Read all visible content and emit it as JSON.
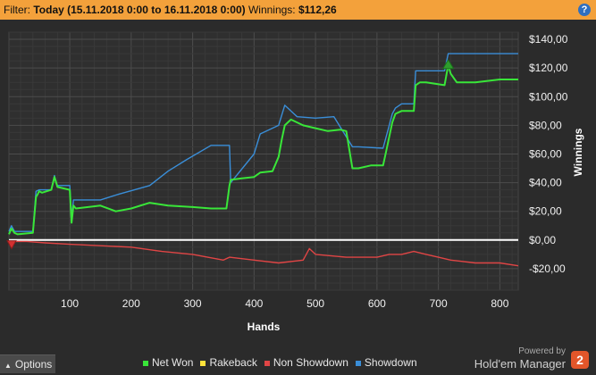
{
  "filter": {
    "label": "Filter:",
    "value": "Today (15.11.2018 0:00 to 16.11.2018 0:00)",
    "winnings_label": "Winnings:",
    "winnings_value": "$112,26"
  },
  "help_glyph": "?",
  "options_label": "Options",
  "brand": {
    "powered": "Powered by",
    "name": "Hold'em Manager",
    "logo_text": "2"
  },
  "colors": {
    "net_won": "#39e639",
    "rakeback": "#ffe23a",
    "non_showdown": "#e04545",
    "showdown": "#3a8ed8",
    "zero_line": "#ffffff",
    "background": "#2b2b2b",
    "plot_background": "#2f2f2f"
  },
  "chart_data": {
    "type": "line",
    "xlabel": "Hands",
    "ylabel": "Winnings",
    "xlim": [
      1,
      830
    ],
    "ylim": [
      -35,
      145
    ],
    "x_ticks": [
      100,
      200,
      300,
      400,
      500,
      600,
      700,
      800
    ],
    "y_ticks": [
      -20,
      0,
      20,
      40,
      60,
      80,
      100,
      120,
      140
    ],
    "y_tick_labels": [
      "-$20,00",
      "$0,00",
      "$20,00",
      "$40,00",
      "$60,00",
      "$80,00",
      "$100,00",
      "$120,00",
      "$140,00"
    ],
    "grid": true,
    "legend_position": "bottom",
    "series": [
      {
        "name": "Net Won",
        "color": "#39e639",
        "x": [
          1,
          5,
          10,
          15,
          40,
          45,
          48,
          50,
          55,
          70,
          75,
          78,
          80,
          100,
          103,
          106,
          110,
          150,
          175,
          200,
          230,
          260,
          300,
          330,
          355,
          360,
          362,
          380,
          400,
          410,
          430,
          440,
          445,
          450,
          460,
          480,
          500,
          520,
          540,
          550,
          560,
          570,
          590,
          610,
          615,
          625,
          630,
          640,
          660,
          663,
          670,
          680,
          710,
          716,
          720,
          730,
          760,
          800,
          830
        ],
        "values": [
          4,
          8,
          5,
          4,
          5,
          30,
          32,
          34,
          33,
          35,
          44,
          40,
          37,
          35,
          12,
          24,
          22,
          24,
          20,
          22,
          26,
          24,
          23,
          22,
          22,
          38,
          42,
          43,
          44,
          47,
          48,
          58,
          70,
          80,
          84,
          80,
          78,
          76,
          77,
          76,
          50,
          50,
          52,
          52,
          62,
          82,
          88,
          90,
          90,
          108,
          110,
          110,
          108,
          122,
          116,
          110,
          110,
          112,
          112
        ]
      },
      {
        "name": "Rakeback",
        "color": "#ffe23a",
        "x": [
          1,
          830
        ],
        "values": [
          0,
          0
        ]
      },
      {
        "name": "Non Showdown",
        "color": "#e04545",
        "x": [
          1,
          10,
          30,
          60,
          100,
          150,
          200,
          250,
          300,
          350,
          360,
          400,
          440,
          480,
          490,
          500,
          550,
          600,
          620,
          640,
          660,
          680,
          700,
          720,
          760,
          800,
          830
        ],
        "values": [
          -3,
          -1,
          -1,
          -2,
          -3,
          -4,
          -5,
          -8,
          -10,
          -14,
          -12,
          -14,
          -16,
          -14,
          -6,
          -10,
          -12,
          -12,
          -10,
          -10,
          -8,
          -10,
          -12,
          -14,
          -16,
          -16,
          -18
        ]
      },
      {
        "name": "Showdown",
        "color": "#3a8ed8",
        "x": [
          1,
          5,
          10,
          40,
          45,
          50,
          70,
          75,
          78,
          80,
          100,
          103,
          106,
          110,
          150,
          180,
          230,
          260,
          290,
          330,
          360,
          362,
          400,
          410,
          440,
          450,
          470,
          500,
          530,
          560,
          570,
          610,
          620,
          625,
          630,
          640,
          660,
          663,
          710,
          716,
          720,
          760,
          830
        ],
        "values": [
          6,
          10,
          6,
          6,
          34,
          35,
          35,
          45,
          40,
          38,
          38,
          15,
          28,
          28,
          28,
          32,
          38,
          48,
          56,
          66,
          66,
          40,
          60,
          74,
          80,
          94,
          86,
          85,
          86,
          65,
          65,
          64,
          80,
          88,
          92,
          95,
          95,
          118,
          118,
          130,
          130,
          130,
          130
        ]
      }
    ]
  }
}
